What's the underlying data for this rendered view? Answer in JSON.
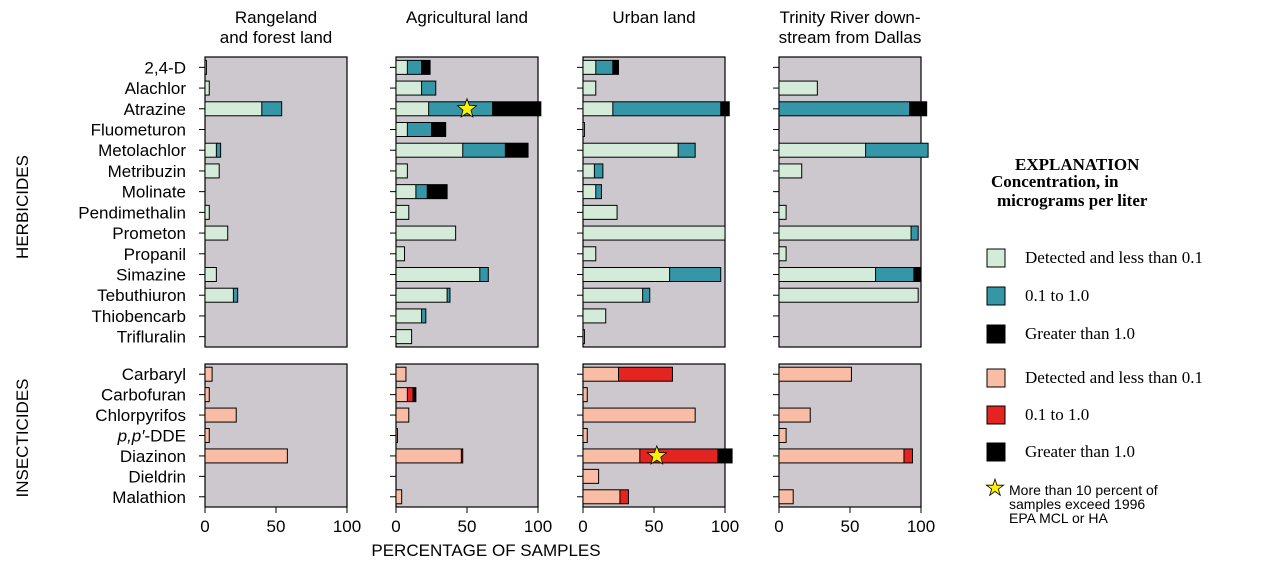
{
  "colors": {
    "panel_bg": "#cdc8ce",
    "herb_low": "#d3ebd8",
    "herb_mid": "#3496a6",
    "insect_low": "#f9bca4",
    "insect_mid": "#e32421",
    "high": "#000000",
    "star": "#fff200"
  },
  "axis_label": "PERCENTAGE OF SAMPLES",
  "group_labels": {
    "herbicides": "HERBICIDES",
    "insecticides": "INSECTICIDES"
  },
  "panel_titles": [
    [
      "Rangeland",
      "and forest land"
    ],
    [
      "Agricultural land"
    ],
    [
      "Urban land"
    ],
    [
      "Trinity River down-",
      "stream from Dallas"
    ]
  ],
  "x_ticks": [
    "0",
    "50",
    "100"
  ],
  "herbicides": [
    "2,4-D",
    "Alachlor",
    "Atrazine",
    "Fluometuron",
    "Metolachlor",
    "Metribuzin",
    "Molinate",
    "Pendimethalin",
    "Prometon",
    "Propanil",
    "Simazine",
    "Tebuthiuron",
    "Thiobencarb",
    "Trifluralin"
  ],
  "insecticides": [
    "Carbaryl",
    "Carbofuran",
    "Chlorpyrifos",
    "p,p′-DDE",
    "Diazinon",
    "Dieldrin",
    "Malathion"
  ],
  "legend": {
    "title": "EXPLANATION",
    "subtitle": [
      "Concentration, in",
      "micrograms per liter"
    ],
    "herb_items": [
      "Detected and less than 0.1",
      "0.1 to 1.0",
      "Greater than 1.0"
    ],
    "insect_items": [
      "Detected and less than 0.1",
      "0.1 to 1.0",
      "Greater than 1.0"
    ],
    "star_note": [
      "More than 10 percent of",
      "samples exceed 1996",
      "EPA MCL or HA"
    ]
  },
  "chart_data": {
    "type": "bar",
    "orientation": "horizontal",
    "stacked": true,
    "xlabel": "PERCENTAGE OF SAMPLES",
    "xlim": [
      0,
      100
    ],
    "categories_herbicides": [
      "2,4-D",
      "Alachlor",
      "Atrazine",
      "Fluometuron",
      "Metolachlor",
      "Metribuzin",
      "Molinate",
      "Pendimethalin",
      "Prometon",
      "Propanil",
      "Simazine",
      "Tebuthiuron",
      "Thiobencarb",
      "Trifluralin"
    ],
    "categories_insecticides": [
      "Carbaryl",
      "Carbofuran",
      "Chlorpyrifos",
      "p,p′-DDE",
      "Diazinon",
      "Dieldrin",
      "Malathion"
    ],
    "series": [
      "Detected and less than 0.1",
      "0.1 to 1.0",
      "Greater than 1.0"
    ],
    "panels": [
      {
        "title": "Rangeland and forest land",
        "herbicides": [
          [
            1,
            0,
            0
          ],
          [
            3,
            0,
            0
          ],
          [
            40,
            14,
            0
          ],
          [
            0,
            0,
            0
          ],
          [
            8,
            3,
            0
          ],
          [
            10,
            0,
            0
          ],
          [
            0,
            0,
            0
          ],
          [
            3,
            0,
            0
          ],
          [
            16,
            0,
            0
          ],
          [
            0,
            0,
            0
          ],
          [
            8,
            0,
            0
          ],
          [
            20,
            3,
            0
          ],
          [
            0,
            0,
            0
          ],
          [
            0,
            0,
            0
          ]
        ],
        "insecticides": [
          [
            5,
            0,
            0
          ],
          [
            3,
            0,
            0
          ],
          [
            22,
            0,
            0
          ],
          [
            3,
            0,
            0
          ],
          [
            58,
            0,
            0
          ],
          [
            0,
            0,
            0
          ],
          [
            0,
            0,
            0
          ]
        ],
        "stars_herbicides": [],
        "stars_insecticides": []
      },
      {
        "title": "Agricultural land",
        "herbicides": [
          [
            8,
            10,
            6
          ],
          [
            18,
            10,
            0
          ],
          [
            23,
            45,
            34
          ],
          [
            8,
            17,
            10
          ],
          [
            47,
            30,
            16
          ],
          [
            8,
            0,
            0
          ],
          [
            14,
            8,
            14
          ],
          [
            9,
            0,
            0
          ],
          [
            42,
            0,
            0
          ],
          [
            6,
            0,
            0
          ],
          [
            59,
            6,
            0
          ],
          [
            36,
            2,
            0
          ],
          [
            18,
            3,
            0
          ],
          [
            11,
            0,
            0
          ]
        ],
        "insecticides": [
          [
            7,
            0,
            0
          ],
          [
            8,
            4,
            2
          ],
          [
            9,
            0,
            0
          ],
          [
            1,
            0,
            0
          ],
          [
            46,
            1,
            0
          ],
          [
            0,
            0,
            0
          ],
          [
            4,
            0,
            0
          ]
        ],
        "stars_herbicides": [
          [
            2,
            50
          ]
        ],
        "stars_insecticides": []
      },
      {
        "title": "Urban land",
        "herbicides": [
          [
            9,
            12,
            4
          ],
          [
            9,
            0,
            0
          ],
          [
            21,
            76,
            6
          ],
          [
            1,
            0,
            0
          ],
          [
            67,
            12,
            0
          ],
          [
            8,
            6,
            0
          ],
          [
            9,
            4,
            0
          ],
          [
            24,
            0,
            0
          ],
          [
            100,
            0,
            0
          ],
          [
            9,
            0,
            0
          ],
          [
            61,
            36,
            0
          ],
          [
            42,
            5,
            0
          ],
          [
            16,
            0,
            0
          ],
          [
            1,
            0,
            0
          ]
        ],
        "insecticides": [
          [
            25,
            38,
            0
          ],
          [
            3,
            0,
            0
          ],
          [
            79,
            0,
            0
          ],
          [
            3,
            0,
            0
          ],
          [
            40,
            55,
            10
          ],
          [
            11,
            0,
            0
          ],
          [
            26,
            6,
            0
          ]
        ],
        "stars_herbicides": [],
        "stars_insecticides": [
          [
            4,
            52
          ]
        ]
      },
      {
        "title": "Trinity River downstream from Dallas",
        "herbicides": [
          [
            0,
            0,
            0
          ],
          [
            27,
            0,
            0
          ],
          [
            0,
            92,
            12
          ],
          [
            0,
            0,
            0
          ],
          [
            61,
            44,
            0
          ],
          [
            16,
            0,
            0
          ],
          [
            0,
            0,
            0
          ],
          [
            5,
            0,
            0
          ],
          [
            93,
            5,
            0
          ],
          [
            5,
            0,
            0
          ],
          [
            68,
            27,
            5
          ],
          [
            98,
            0,
            0
          ],
          [
            0,
            0,
            0
          ],
          [
            0,
            0,
            0
          ]
        ],
        "insecticides": [
          [
            51,
            0,
            0
          ],
          [
            0,
            0,
            0
          ],
          [
            22,
            0,
            0
          ],
          [
            5,
            0,
            0
          ],
          [
            88,
            6,
            0
          ],
          [
            0,
            0,
            0
          ],
          [
            10,
            0,
            0
          ]
        ],
        "stars_herbicides": [],
        "stars_insecticides": []
      }
    ]
  }
}
